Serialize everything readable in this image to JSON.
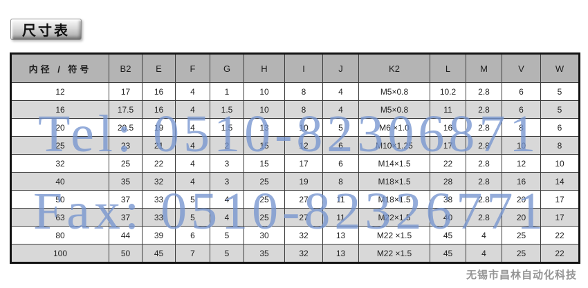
{
  "title": {
    "label": "尺寸表"
  },
  "watermarks": {
    "tel": "Tel: 0510-82306871",
    "fax": "Fax: 0510-82326771",
    "company": "无锡市昌林自动化科技"
  },
  "colors": {
    "header_bg": "#b4b4b4",
    "row_alt_bg": "#d8d8d8",
    "row_bg": "#ffffff",
    "grid_border": "#3c3c3c",
    "outer_border": "#131313",
    "watermark_blue": "#7796d0",
    "watermark_gray": "#8f8f8f"
  },
  "chart_data": {
    "type": "table",
    "title": "尺寸表",
    "columns": [
      "内径 / 符号",
      "B2",
      "E",
      "F",
      "G",
      "H",
      "I",
      "J",
      "K2",
      "L",
      "M",
      "V",
      "W"
    ],
    "rows": [
      [
        "12",
        "17",
        "16",
        "4",
        "1",
        "10",
        "8",
        "4",
        "M5×0.8",
        "10.2",
        "2.8",
        "6",
        "5"
      ],
      [
        "16",
        "17.5",
        "16",
        "4",
        "1.5",
        "10",
        "8",
        "4",
        "M5×0.8",
        "11",
        "2.8",
        "6",
        "5"
      ],
      [
        "20",
        "20.5",
        "19",
        "4",
        "1.5",
        "13",
        "10",
        "5",
        "M6 ×1.0",
        "16",
        "2.8",
        "8",
        "6"
      ],
      [
        "25",
        "23",
        "21",
        "4",
        "2",
        "15",
        "12",
        "6",
        "M10×1.25",
        "17",
        "2.8",
        "10",
        "8"
      ],
      [
        "32",
        "25",
        "22",
        "4",
        "3",
        "15",
        "17",
        "6",
        "M14×1.5",
        "22",
        "2.8",
        "12",
        "10"
      ],
      [
        "40",
        "35",
        "32",
        "4",
        "3",
        "25",
        "19",
        "8",
        "M18×1.5",
        "28",
        "2.8",
        "16",
        "14"
      ],
      [
        "50",
        "37",
        "33",
        "5",
        "4",
        "25",
        "27",
        "11",
        "M18×1.5",
        "38",
        "2.8",
        "20",
        "17"
      ],
      [
        "63",
        "37",
        "33",
        "5",
        "4",
        "25",
        "27",
        "11",
        "M22×1.5",
        "40",
        "2.8",
        "20",
        "17"
      ],
      [
        "80",
        "44",
        "39",
        "6",
        "5",
        "30",
        "32",
        "13",
        "M22 ×1.5",
        "45",
        "4",
        "25",
        "22"
      ],
      [
        "100",
        "50",
        "45",
        "7",
        "5",
        "35",
        "32",
        "13",
        "M22 ×1.5",
        "45",
        "4",
        "25",
        "22"
      ]
    ]
  }
}
